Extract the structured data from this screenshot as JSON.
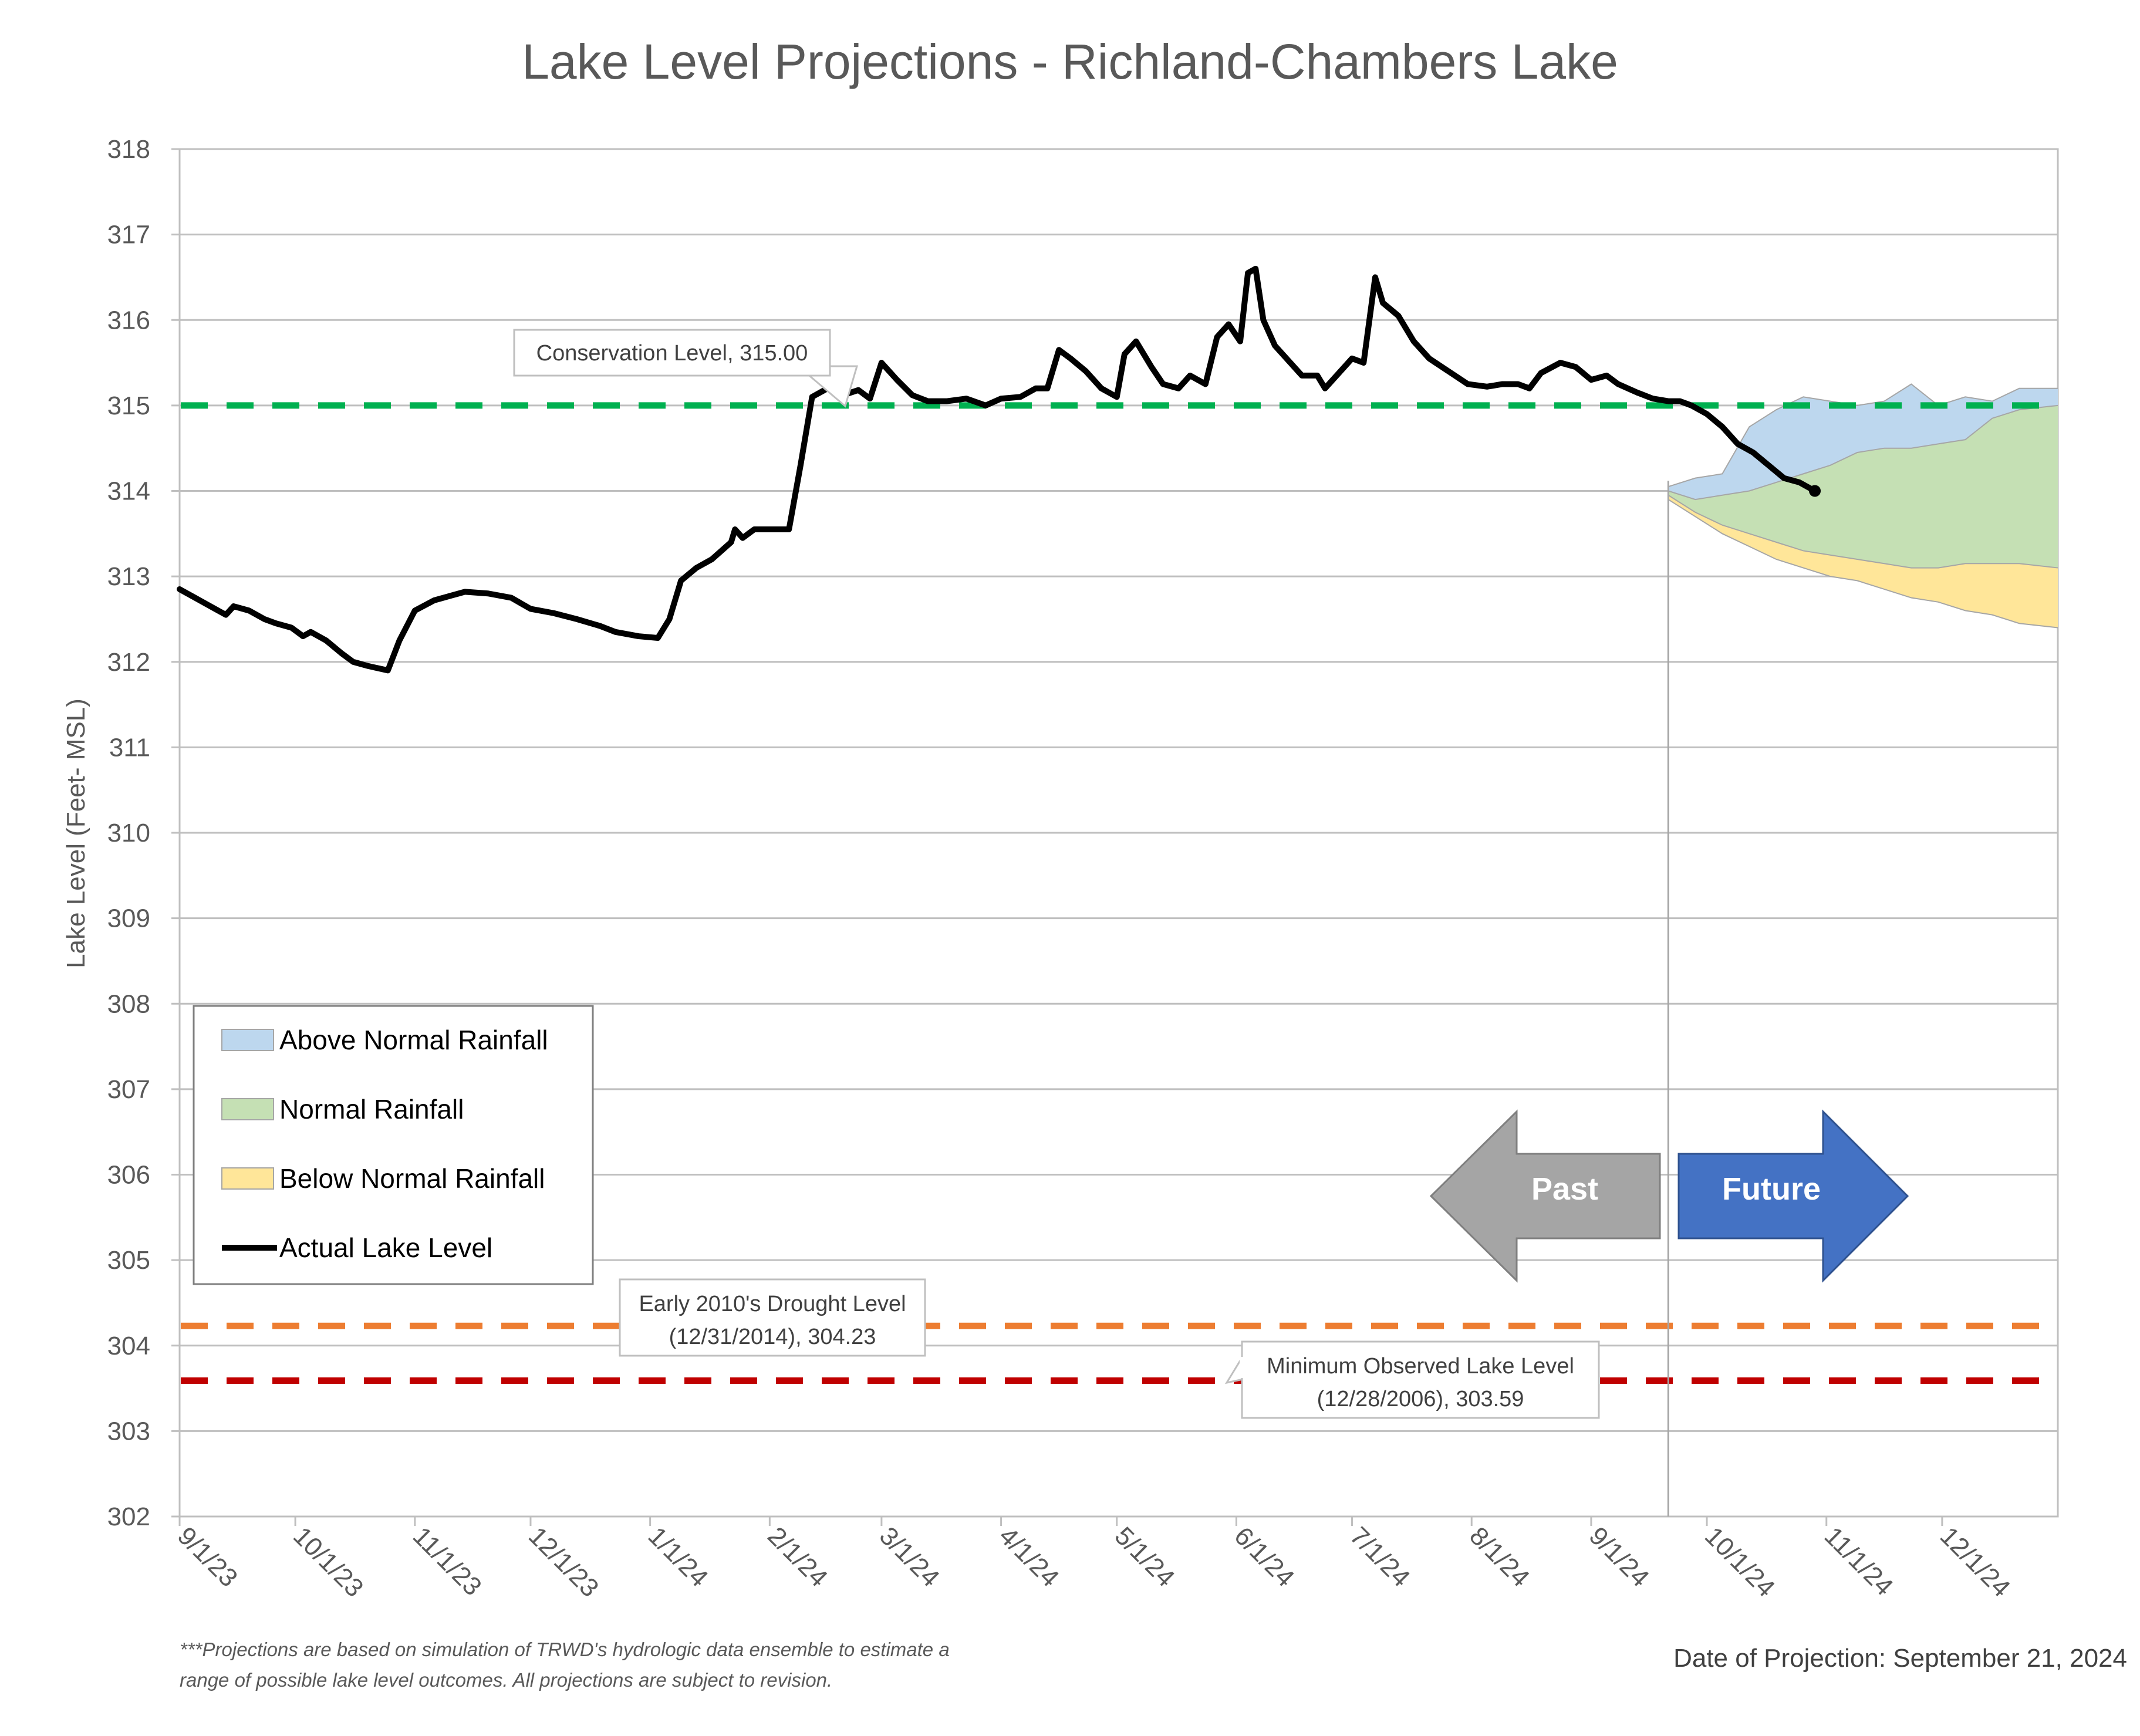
{
  "chart_data": {
    "type": "area",
    "title": "Lake Level Projections - Richland-Chambers Lake",
    "ylabel": "Lake Level (Feet- MSL)",
    "ylim": [
      302,
      318
    ],
    "yticks": [
      "302",
      "303",
      "304",
      "305",
      "306",
      "307",
      "308",
      "309",
      "310",
      "311",
      "312",
      "313",
      "314",
      "315",
      "316",
      "317",
      "318"
    ],
    "x_tick_labels": [
      "9/1/23",
      "10/1/23",
      "11/1/23",
      "12/1/23",
      "1/1/24",
      "2/1/24",
      "3/1/24",
      "4/1/24",
      "5/1/24",
      "6/1/24",
      "7/1/24",
      "8/1/24",
      "9/1/24",
      "10/1/24",
      "11/1/24",
      "12/1/24"
    ],
    "x_tick_dates": [
      "2023-09-01",
      "2023-10-01",
      "2023-11-01",
      "2023-12-01",
      "2024-01-01",
      "2024-02-01",
      "2024-03-01",
      "2024-04-01",
      "2024-05-01",
      "2024-06-01",
      "2024-07-01",
      "2024-08-01",
      "2024-09-01",
      "2024-10-01",
      "2024-11-01",
      "2024-12-01"
    ],
    "xlim": [
      "2023-09-01",
      "2024-12-31"
    ],
    "grid": "horizontal",
    "legend_position": "lower-left",
    "legend": [
      "Above Normal Rainfall",
      "Normal Rainfall",
      "Below Normal Rainfall",
      "Actual Lake Level"
    ],
    "reference_lines": [
      {
        "label": "Conservation Level, 315.00",
        "value": 315.0,
        "color": "#00b050"
      },
      {
        "label_line1": "Early 2010's Drought Level",
        "label_line2": "(12/31/2014), 304.23",
        "value": 304.23,
        "color": "#ed7d31"
      },
      {
        "label_line1": "Minimum Observed Lake Level",
        "label_line2": "(12/28/2006), 303.59",
        "value": 303.59,
        "color": "#c00000"
      }
    ],
    "projection_start": "2024-09-21",
    "actual_series": {
      "name": "Actual Lake Level",
      "color": "#000000",
      "points": [
        [
          "2023-09-01",
          312.85
        ],
        [
          "2023-09-05",
          312.75
        ],
        [
          "2023-09-09",
          312.65
        ],
        [
          "2023-09-13",
          312.55
        ],
        [
          "2023-09-15",
          312.65
        ],
        [
          "2023-09-19",
          312.6
        ],
        [
          "2023-09-23",
          312.5
        ],
        [
          "2023-09-26",
          312.45
        ],
        [
          "2023-09-30",
          312.4
        ],
        [
          "2023-10-03",
          312.3
        ],
        [
          "2023-10-05",
          312.35
        ],
        [
          "2023-10-09",
          312.25
        ],
        [
          "2023-10-13",
          312.1
        ],
        [
          "2023-10-16",
          312.0
        ],
        [
          "2023-10-20",
          311.95
        ],
        [
          "2023-10-25",
          311.9
        ],
        [
          "2023-10-28",
          312.25
        ],
        [
          "2023-11-01",
          312.6
        ],
        [
          "2023-11-06",
          312.72
        ],
        [
          "2023-11-10",
          312.77
        ],
        [
          "2023-11-14",
          312.82
        ],
        [
          "2023-11-20",
          312.8
        ],
        [
          "2023-11-26",
          312.75
        ],
        [
          "2023-12-01",
          312.62
        ],
        [
          "2023-12-07",
          312.57
        ],
        [
          "2023-12-13",
          312.5
        ],
        [
          "2023-12-19",
          312.42
        ],
        [
          "2023-12-23",
          312.35
        ],
        [
          "2023-12-29",
          312.3
        ],
        [
          "2024-01-03",
          312.28
        ],
        [
          "2024-01-06",
          312.5
        ],
        [
          "2024-01-09",
          312.95
        ],
        [
          "2024-01-13",
          313.1
        ],
        [
          "2024-01-17",
          313.2
        ],
        [
          "2024-01-22",
          313.4
        ],
        [
          "2024-01-23",
          313.55
        ],
        [
          "2024-01-25",
          313.45
        ],
        [
          "2024-01-28",
          313.55
        ],
        [
          "2024-02-01",
          313.55
        ],
        [
          "2024-02-06",
          313.55
        ],
        [
          "2024-02-09",
          314.3
        ],
        [
          "2024-02-12",
          315.1
        ],
        [
          "2024-02-16",
          315.2
        ],
        [
          "2024-02-20",
          315.12
        ],
        [
          "2024-02-24",
          315.18
        ],
        [
          "2024-02-27",
          315.08
        ],
        [
          "2024-03-01",
          315.5
        ],
        [
          "2024-03-05",
          315.3
        ],
        [
          "2024-03-09",
          315.12
        ],
        [
          "2024-03-13",
          315.05
        ],
        [
          "2024-03-18",
          315.05
        ],
        [
          "2024-03-23",
          315.08
        ],
        [
          "2024-03-28",
          315.0
        ],
        [
          "2024-04-01",
          315.08
        ],
        [
          "2024-04-06",
          315.1
        ],
        [
          "2024-04-10",
          315.2
        ],
        [
          "2024-04-13",
          315.2
        ],
        [
          "2024-04-16",
          315.65
        ],
        [
          "2024-04-19",
          315.55
        ],
        [
          "2024-04-23",
          315.4
        ],
        [
          "2024-04-27",
          315.2
        ],
        [
          "2024-05-01",
          315.1
        ],
        [
          "2024-05-03",
          315.6
        ],
        [
          "2024-05-06",
          315.75
        ],
        [
          "2024-05-10",
          315.45
        ],
        [
          "2024-05-13",
          315.25
        ],
        [
          "2024-05-17",
          315.2
        ],
        [
          "2024-05-20",
          315.35
        ],
        [
          "2024-05-24",
          315.25
        ],
        [
          "2024-05-27",
          315.8
        ],
        [
          "2024-05-30",
          315.95
        ],
        [
          "2024-06-02",
          315.75
        ],
        [
          "2024-06-04",
          316.55
        ],
        [
          "2024-06-06",
          316.6
        ],
        [
          "2024-06-08",
          316.0
        ],
        [
          "2024-06-11",
          315.7
        ],
        [
          "2024-06-15",
          315.5
        ],
        [
          "2024-06-18",
          315.35
        ],
        [
          "2024-06-22",
          315.35
        ],
        [
          "2024-06-24",
          315.2
        ],
        [
          "2024-06-27",
          315.35
        ],
        [
          "2024-07-01",
          315.55
        ],
        [
          "2024-07-04",
          315.5
        ],
        [
          "2024-07-07",
          316.5
        ],
        [
          "2024-07-09",
          316.2
        ],
        [
          "2024-07-13",
          316.05
        ],
        [
          "2024-07-17",
          315.75
        ],
        [
          "2024-07-21",
          315.55
        ],
        [
          "2024-07-26",
          315.4
        ],
        [
          "2024-07-31",
          315.25
        ],
        [
          "2024-08-05",
          315.22
        ],
        [
          "2024-08-09",
          315.25
        ],
        [
          "2024-08-13",
          315.25
        ],
        [
          "2024-08-16",
          315.2
        ],
        [
          "2024-08-19",
          315.38
        ],
        [
          "2024-08-24",
          315.5
        ],
        [
          "2024-08-28",
          315.45
        ],
        [
          "2024-09-01",
          315.3
        ],
        [
          "2024-09-05",
          315.35
        ],
        [
          "2024-09-08",
          315.25
        ],
        [
          "2024-09-13",
          315.15
        ],
        [
          "2024-09-17",
          315.08
        ],
        [
          "2024-09-21",
          315.05
        ],
        [
          "2024-09-24",
          315.05
        ],
        [
          "2024-09-27",
          315.0
        ],
        [
          "2024-10-01",
          314.9
        ],
        [
          "2024-10-05",
          314.75
        ],
        [
          "2024-10-09",
          314.55
        ],
        [
          "2024-10-13",
          314.45
        ],
        [
          "2024-10-17",
          314.3
        ],
        [
          "2024-10-21",
          314.15
        ],
        [
          "2024-10-25",
          314.1
        ],
        [
          "2024-10-29",
          314.0
        ]
      ]
    },
    "series": [
      {
        "name": "Above Normal Rainfall",
        "color": "#bdd7ee",
        "x": [
          "2024-09-21",
          "2024-09-28",
          "2024-10-05",
          "2024-10-12",
          "2024-10-19",
          "2024-10-26",
          "2024-11-02",
          "2024-11-09",
          "2024-11-16",
          "2024-11-23",
          "2024-11-30",
          "2024-12-07",
          "2024-12-14",
          "2024-12-21",
          "2024-12-31"
        ],
        "upper": [
          314.05,
          314.15,
          314.2,
          314.75,
          314.95,
          315.1,
          315.05,
          315.0,
          315.05,
          315.25,
          315.0,
          315.1,
          315.05,
          315.2,
          315.2
        ],
        "lower": [
          314.0,
          313.9,
          313.95,
          314.0,
          314.1,
          314.2,
          314.3,
          314.45,
          314.5,
          314.5,
          314.55,
          314.6,
          314.85,
          314.95,
          315.0
        ]
      },
      {
        "name": "Normal Rainfall",
        "color": "#c5e0b4",
        "x": [
          "2024-09-21",
          "2024-09-28",
          "2024-10-05",
          "2024-10-12",
          "2024-10-19",
          "2024-10-26",
          "2024-11-02",
          "2024-11-09",
          "2024-11-16",
          "2024-11-23",
          "2024-11-30",
          "2024-12-07",
          "2024-12-14",
          "2024-12-21",
          "2024-12-31"
        ],
        "upper": [
          314.0,
          313.9,
          313.95,
          314.0,
          314.1,
          314.2,
          314.3,
          314.45,
          314.5,
          314.5,
          314.55,
          314.6,
          314.85,
          314.95,
          315.0
        ],
        "lower": [
          313.95,
          313.75,
          313.6,
          313.5,
          313.4,
          313.3,
          313.25,
          313.2,
          313.15,
          313.1,
          313.1,
          313.15,
          313.15,
          313.15,
          313.1
        ]
      },
      {
        "name": "Below Normal Rainfall",
        "color": "#ffe699",
        "x": [
          "2024-09-21",
          "2024-09-28",
          "2024-10-05",
          "2024-10-12",
          "2024-10-19",
          "2024-10-26",
          "2024-11-02",
          "2024-11-09",
          "2024-11-16",
          "2024-11-23",
          "2024-11-30",
          "2024-12-07",
          "2024-12-14",
          "2024-12-21",
          "2024-12-31"
        ],
        "upper": [
          313.95,
          313.75,
          313.6,
          313.5,
          313.4,
          313.3,
          313.25,
          313.2,
          313.15,
          313.1,
          313.1,
          313.15,
          313.15,
          313.15,
          313.1
        ],
        "lower": [
          313.9,
          313.7,
          313.5,
          313.35,
          313.2,
          313.1,
          313.0,
          312.95,
          312.85,
          312.75,
          312.7,
          312.6,
          312.55,
          312.45,
          312.4
        ]
      }
    ],
    "arrows": {
      "past": "Past",
      "future": "Future"
    }
  },
  "footnote": {
    "line1": "***Projections are based on simulation of TRWD's hydrologic data ensemble to estimate a",
    "line2": "range of possible lake level outcomes.  All projections are subject to revision."
  },
  "projection_date": "Date of Projection: September 21, 2024",
  "colors": {
    "above": "#bdd7ee",
    "normal": "#c5e0b4",
    "below": "#ffe699",
    "past_arrow": "#a5a5a5",
    "future_arrow": "#4472c4"
  }
}
